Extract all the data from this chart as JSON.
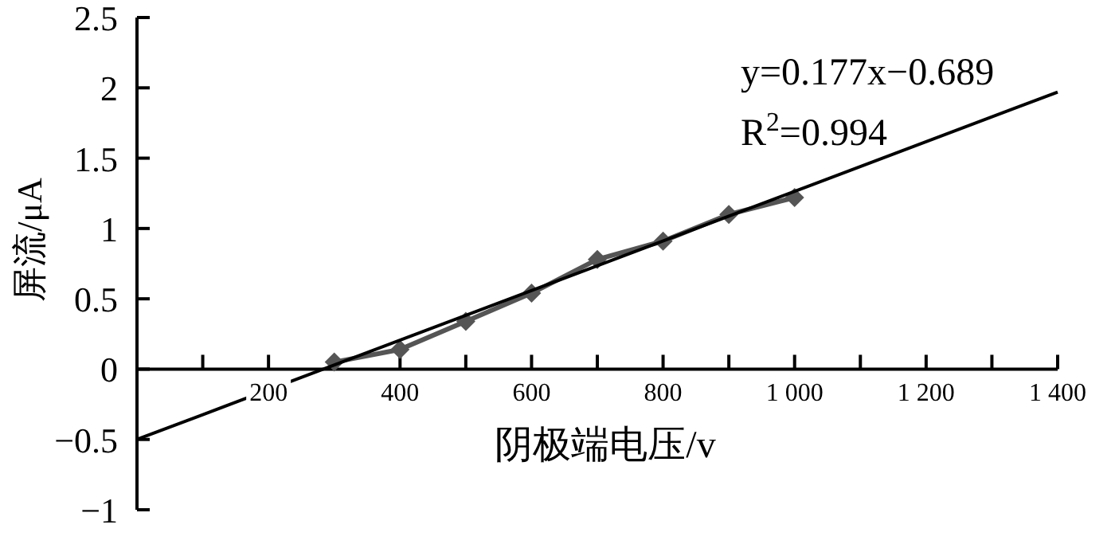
{
  "chart_data": {
    "type": "line",
    "xlabel": "阴极端电压/v",
    "ylabel": "屏流/μA",
    "xlim": [
      0,
      1400
    ],
    "ylim": [
      -1,
      2.5
    ],
    "xticks": [
      {
        "value": 100,
        "label": null
      },
      200,
      {
        "value": 300,
        "label": null
      },
      400,
      {
        "value": 500,
        "label": null
      },
      600,
      {
        "value": 700,
        "label": null
      },
      800,
      {
        "value": 900,
        "label": null
      },
      {
        "value": 1000,
        "label": "1 000"
      },
      {
        "value": 1100,
        "label": null
      },
      {
        "value": 1200,
        "label": "1 200"
      },
      {
        "value": 1300,
        "label": null
      },
      {
        "value": 1400,
        "label": "1 400"
      }
    ],
    "yticks": [
      {
        "value": -1,
        "label": "−1"
      },
      {
        "value": -0.5,
        "label": "−0.5"
      },
      0,
      0.5,
      1,
      1.5,
      2,
      2.5
    ],
    "grid": false,
    "series": [
      {
        "color": "#555555",
        "marker": "diamond",
        "x": [
          300,
          400,
          500,
          600,
          700,
          800,
          900,
          1000
        ],
        "values": [
          0.05,
          0.14,
          0.34,
          0.54,
          0.78,
          0.91,
          1.1,
          1.22
        ]
      },
      {
        "color": "#000000",
        "marker": "none",
        "x": [
          0,
          1400
        ],
        "values": [
          -0.5,
          1.97
        ]
      }
    ],
    "annotations": [
      "y=0.177x−0.689",
      "R$^{2}$=0.994"
    ]
  }
}
